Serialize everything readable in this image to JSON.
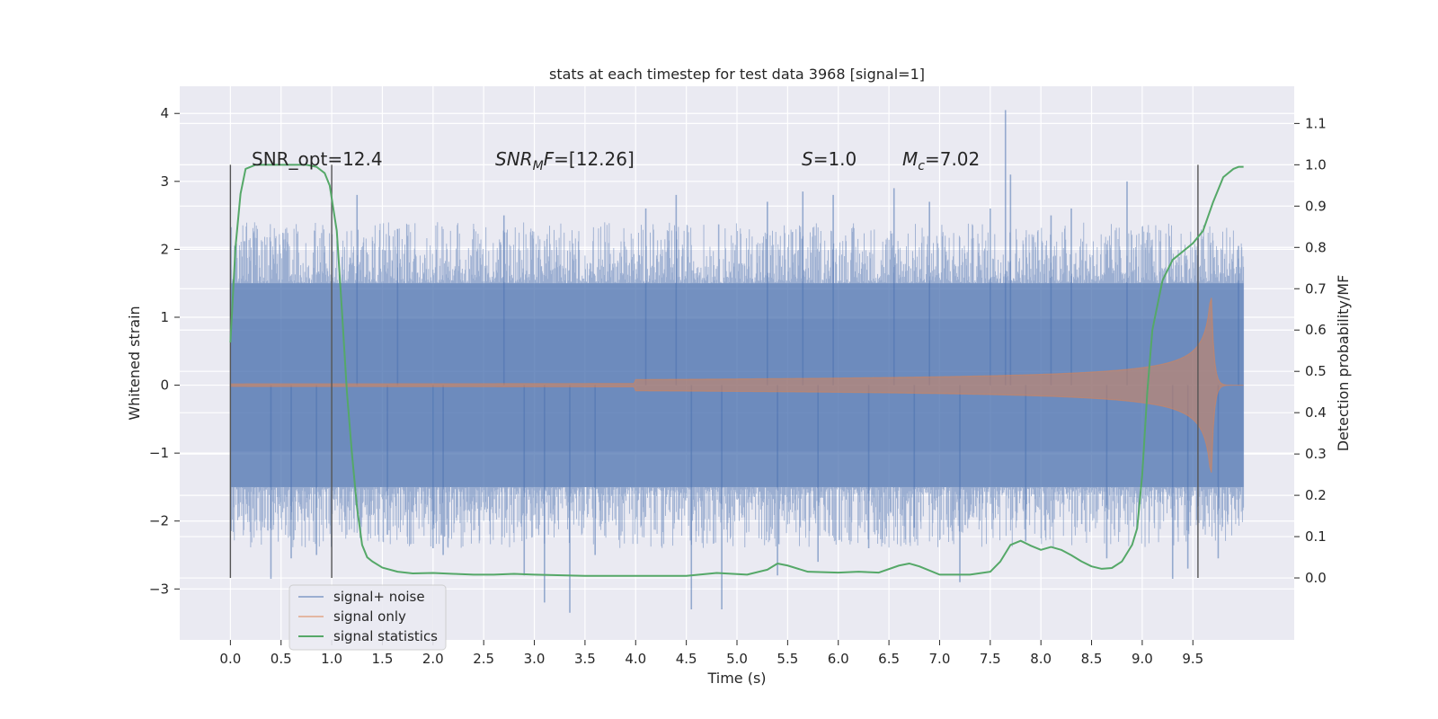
{
  "chart_data": {
    "type": "line",
    "title": "stats at each timestep for test data 3968 [signal=1]",
    "xlabel": "Time (s)",
    "ylabel": "Whitened strain",
    "y2label": "Detection probability/MF",
    "xlim": [
      -0.5,
      10.5
    ],
    "ylim": [
      -3.75,
      4.4
    ],
    "y2lim": [
      -0.15,
      1.19
    ],
    "xticks": [
      "0.0",
      "0.5",
      "1.0",
      "1.5",
      "2.0",
      "2.5",
      "3.0",
      "3.5",
      "4.0",
      "4.5",
      "5.0",
      "5.5",
      "6.0",
      "6.5",
      "7.0",
      "7.5",
      "8.0",
      "8.5",
      "9.0",
      "9.5"
    ],
    "yticks": [
      "−3",
      "−2",
      "−1",
      "0",
      "1",
      "2",
      "3",
      "4"
    ],
    "y2ticks": [
      "0.0",
      "0.1",
      "0.2",
      "0.3",
      "0.4",
      "0.5",
      "0.6",
      "0.7",
      "0.8",
      "0.9",
      "1.0",
      "1.1"
    ],
    "grid": true,
    "legend_position": "lower-left",
    "annotations": {
      "snr_opt": "SNR_opt=12.4",
      "snr_mf": "=[12.26]",
      "snr_mf_symbol": "SNR",
      "snr_mf_sub": "M",
      "snr_mf_rest": "F",
      "s_symbol": "S",
      "s_value": "=1.0",
      "mc_symbol": "M",
      "mc_sub": "c",
      "mc_value": "=7.02"
    },
    "vlines_x": [
      0.0,
      1.0,
      9.55
    ],
    "series": [
      {
        "name": "signal+ noise",
        "color": "#4c72b0",
        "x_range": [
          0.0,
          10.0
        ],
        "band_core": 1.5,
        "spikes": [
          [
            0.4,
            -2.85
          ],
          [
            0.6,
            -2.55
          ],
          [
            0.85,
            -2.5
          ],
          [
            1.25,
            2.8
          ],
          [
            1.55,
            -2.2
          ],
          [
            1.65,
            2.3
          ],
          [
            2.0,
            -2.4
          ],
          [
            2.1,
            -2.5
          ],
          [
            2.7,
            2.5
          ],
          [
            2.9,
            -2.8
          ],
          [
            3.1,
            -3.2
          ],
          [
            3.35,
            -3.35
          ],
          [
            3.6,
            -2.5
          ],
          [
            4.1,
            2.6
          ],
          [
            4.4,
            2.8
          ],
          [
            4.55,
            -3.3
          ],
          [
            4.85,
            -3.3
          ],
          [
            5.3,
            2.7
          ],
          [
            5.4,
            -2.8
          ],
          [
            5.65,
            2.85
          ],
          [
            5.8,
            -2.6
          ],
          [
            5.95,
            2.8
          ],
          [
            6.3,
            -2.4
          ],
          [
            6.55,
            2.9
          ],
          [
            6.75,
            -2.1
          ],
          [
            6.9,
            2.7
          ],
          [
            7.2,
            -2.9
          ],
          [
            7.5,
            2.6
          ],
          [
            7.65,
            4.05
          ],
          [
            7.7,
            3.1
          ],
          [
            7.85,
            -2.3
          ],
          [
            8.1,
            2.5
          ],
          [
            8.3,
            2.6
          ],
          [
            8.65,
            -2.55
          ],
          [
            8.85,
            3.0
          ],
          [
            9.3,
            -2.85
          ],
          [
            9.45,
            -2.7
          ],
          [
            9.75,
            -2.55
          ],
          [
            9.95,
            2.05
          ]
        ]
      },
      {
        "name": "signal only",
        "color": "#dd8452",
        "x_range": [
          0.0,
          10.0
        ],
        "merger_time": 9.68,
        "peak_amplitude": 1.47
      },
      {
        "name": "signal statistics",
        "color": "#55a868",
        "axis": "right",
        "x": [
          0.0,
          0.05,
          0.1,
          0.15,
          0.25,
          0.4,
          0.6,
          0.75,
          0.85,
          0.93,
          0.98,
          1.05,
          1.1,
          1.15,
          1.2,
          1.25,
          1.3,
          1.35,
          1.4,
          1.5,
          1.65,
          1.8,
          2.0,
          2.2,
          2.4,
          2.6,
          2.8,
          3.0,
          3.5,
          4.0,
          4.5,
          4.8,
          5.1,
          5.3,
          5.4,
          5.5,
          5.7,
          6.0,
          6.2,
          6.4,
          6.6,
          6.7,
          6.8,
          7.0,
          7.3,
          7.5,
          7.6,
          7.7,
          7.8,
          7.9,
          8.0,
          8.1,
          8.2,
          8.3,
          8.4,
          8.5,
          8.6,
          8.7,
          8.8,
          8.9,
          8.95,
          9.0,
          9.05,
          9.1,
          9.2,
          9.3,
          9.4,
          9.5,
          9.6,
          9.7,
          9.8,
          9.9,
          9.95,
          10.0
        ],
        "values": [
          0.57,
          0.8,
          0.93,
          0.99,
          1.0,
          1.0,
          1.0,
          1.0,
          0.995,
          0.98,
          0.95,
          0.84,
          0.65,
          0.45,
          0.3,
          0.17,
          0.08,
          0.05,
          0.04,
          0.025,
          0.015,
          0.011,
          0.012,
          0.01,
          0.008,
          0.008,
          0.01,
          0.008,
          0.005,
          0.005,
          0.005,
          0.012,
          0.008,
          0.02,
          0.035,
          0.03,
          0.015,
          0.013,
          0.015,
          0.013,
          0.03,
          0.035,
          0.028,
          0.008,
          0.008,
          0.015,
          0.04,
          0.08,
          0.09,
          0.078,
          0.068,
          0.075,
          0.068,
          0.055,
          0.04,
          0.028,
          0.022,
          0.024,
          0.04,
          0.08,
          0.12,
          0.25,
          0.45,
          0.6,
          0.72,
          0.77,
          0.79,
          0.81,
          0.84,
          0.91,
          0.97,
          0.99,
          0.995,
          0.995
        ]
      }
    ]
  }
}
